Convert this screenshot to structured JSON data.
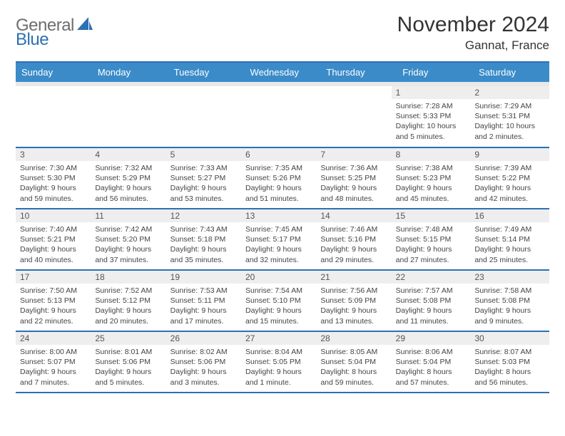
{
  "brand": {
    "text_gray": "General",
    "text_blue": "Blue"
  },
  "header": {
    "title": "November 2024",
    "location": "Gannat, France"
  },
  "colors": {
    "header_bar": "#3b8bc9",
    "rule": "#2d6fb5",
    "daynum_bg": "#eeeeee",
    "spacer_bg": "#e9e9e9",
    "text": "#333333",
    "brand_gray": "#6e6e6e",
    "brand_blue": "#2d6fb5"
  },
  "day_headers": [
    "Sunday",
    "Monday",
    "Tuesday",
    "Wednesday",
    "Thursday",
    "Friday",
    "Saturday"
  ],
  "weeks": [
    [
      {
        "empty": true
      },
      {
        "empty": true
      },
      {
        "empty": true
      },
      {
        "empty": true
      },
      {
        "empty": true
      },
      {
        "num": "1",
        "sunrise": "Sunrise: 7:28 AM",
        "sunset": "Sunset: 5:33 PM",
        "daylight1": "Daylight: 10 hours",
        "daylight2": "and 5 minutes."
      },
      {
        "num": "2",
        "sunrise": "Sunrise: 7:29 AM",
        "sunset": "Sunset: 5:31 PM",
        "daylight1": "Daylight: 10 hours",
        "daylight2": "and 2 minutes."
      }
    ],
    [
      {
        "num": "3",
        "sunrise": "Sunrise: 7:30 AM",
        "sunset": "Sunset: 5:30 PM",
        "daylight1": "Daylight: 9 hours",
        "daylight2": "and 59 minutes."
      },
      {
        "num": "4",
        "sunrise": "Sunrise: 7:32 AM",
        "sunset": "Sunset: 5:29 PM",
        "daylight1": "Daylight: 9 hours",
        "daylight2": "and 56 minutes."
      },
      {
        "num": "5",
        "sunrise": "Sunrise: 7:33 AM",
        "sunset": "Sunset: 5:27 PM",
        "daylight1": "Daylight: 9 hours",
        "daylight2": "and 53 minutes."
      },
      {
        "num": "6",
        "sunrise": "Sunrise: 7:35 AM",
        "sunset": "Sunset: 5:26 PM",
        "daylight1": "Daylight: 9 hours",
        "daylight2": "and 51 minutes."
      },
      {
        "num": "7",
        "sunrise": "Sunrise: 7:36 AM",
        "sunset": "Sunset: 5:25 PM",
        "daylight1": "Daylight: 9 hours",
        "daylight2": "and 48 minutes."
      },
      {
        "num": "8",
        "sunrise": "Sunrise: 7:38 AM",
        "sunset": "Sunset: 5:23 PM",
        "daylight1": "Daylight: 9 hours",
        "daylight2": "and 45 minutes."
      },
      {
        "num": "9",
        "sunrise": "Sunrise: 7:39 AM",
        "sunset": "Sunset: 5:22 PM",
        "daylight1": "Daylight: 9 hours",
        "daylight2": "and 42 minutes."
      }
    ],
    [
      {
        "num": "10",
        "sunrise": "Sunrise: 7:40 AM",
        "sunset": "Sunset: 5:21 PM",
        "daylight1": "Daylight: 9 hours",
        "daylight2": "and 40 minutes."
      },
      {
        "num": "11",
        "sunrise": "Sunrise: 7:42 AM",
        "sunset": "Sunset: 5:20 PM",
        "daylight1": "Daylight: 9 hours",
        "daylight2": "and 37 minutes."
      },
      {
        "num": "12",
        "sunrise": "Sunrise: 7:43 AM",
        "sunset": "Sunset: 5:18 PM",
        "daylight1": "Daylight: 9 hours",
        "daylight2": "and 35 minutes."
      },
      {
        "num": "13",
        "sunrise": "Sunrise: 7:45 AM",
        "sunset": "Sunset: 5:17 PM",
        "daylight1": "Daylight: 9 hours",
        "daylight2": "and 32 minutes."
      },
      {
        "num": "14",
        "sunrise": "Sunrise: 7:46 AM",
        "sunset": "Sunset: 5:16 PM",
        "daylight1": "Daylight: 9 hours",
        "daylight2": "and 29 minutes."
      },
      {
        "num": "15",
        "sunrise": "Sunrise: 7:48 AM",
        "sunset": "Sunset: 5:15 PM",
        "daylight1": "Daylight: 9 hours",
        "daylight2": "and 27 minutes."
      },
      {
        "num": "16",
        "sunrise": "Sunrise: 7:49 AM",
        "sunset": "Sunset: 5:14 PM",
        "daylight1": "Daylight: 9 hours",
        "daylight2": "and 25 minutes."
      }
    ],
    [
      {
        "num": "17",
        "sunrise": "Sunrise: 7:50 AM",
        "sunset": "Sunset: 5:13 PM",
        "daylight1": "Daylight: 9 hours",
        "daylight2": "and 22 minutes."
      },
      {
        "num": "18",
        "sunrise": "Sunrise: 7:52 AM",
        "sunset": "Sunset: 5:12 PM",
        "daylight1": "Daylight: 9 hours",
        "daylight2": "and 20 minutes."
      },
      {
        "num": "19",
        "sunrise": "Sunrise: 7:53 AM",
        "sunset": "Sunset: 5:11 PM",
        "daylight1": "Daylight: 9 hours",
        "daylight2": "and 17 minutes."
      },
      {
        "num": "20",
        "sunrise": "Sunrise: 7:54 AM",
        "sunset": "Sunset: 5:10 PM",
        "daylight1": "Daylight: 9 hours",
        "daylight2": "and 15 minutes."
      },
      {
        "num": "21",
        "sunrise": "Sunrise: 7:56 AM",
        "sunset": "Sunset: 5:09 PM",
        "daylight1": "Daylight: 9 hours",
        "daylight2": "and 13 minutes."
      },
      {
        "num": "22",
        "sunrise": "Sunrise: 7:57 AM",
        "sunset": "Sunset: 5:08 PM",
        "daylight1": "Daylight: 9 hours",
        "daylight2": "and 11 minutes."
      },
      {
        "num": "23",
        "sunrise": "Sunrise: 7:58 AM",
        "sunset": "Sunset: 5:08 PM",
        "daylight1": "Daylight: 9 hours",
        "daylight2": "and 9 minutes."
      }
    ],
    [
      {
        "num": "24",
        "sunrise": "Sunrise: 8:00 AM",
        "sunset": "Sunset: 5:07 PM",
        "daylight1": "Daylight: 9 hours",
        "daylight2": "and 7 minutes."
      },
      {
        "num": "25",
        "sunrise": "Sunrise: 8:01 AM",
        "sunset": "Sunset: 5:06 PM",
        "daylight1": "Daylight: 9 hours",
        "daylight2": "and 5 minutes."
      },
      {
        "num": "26",
        "sunrise": "Sunrise: 8:02 AM",
        "sunset": "Sunset: 5:06 PM",
        "daylight1": "Daylight: 9 hours",
        "daylight2": "and 3 minutes."
      },
      {
        "num": "27",
        "sunrise": "Sunrise: 8:04 AM",
        "sunset": "Sunset: 5:05 PM",
        "daylight1": "Daylight: 9 hours",
        "daylight2": "and 1 minute."
      },
      {
        "num": "28",
        "sunrise": "Sunrise: 8:05 AM",
        "sunset": "Sunset: 5:04 PM",
        "daylight1": "Daylight: 8 hours",
        "daylight2": "and 59 minutes."
      },
      {
        "num": "29",
        "sunrise": "Sunrise: 8:06 AM",
        "sunset": "Sunset: 5:04 PM",
        "daylight1": "Daylight: 8 hours",
        "daylight2": "and 57 minutes."
      },
      {
        "num": "30",
        "sunrise": "Sunrise: 8:07 AM",
        "sunset": "Sunset: 5:03 PM",
        "daylight1": "Daylight: 8 hours",
        "daylight2": "and 56 minutes."
      }
    ]
  ]
}
